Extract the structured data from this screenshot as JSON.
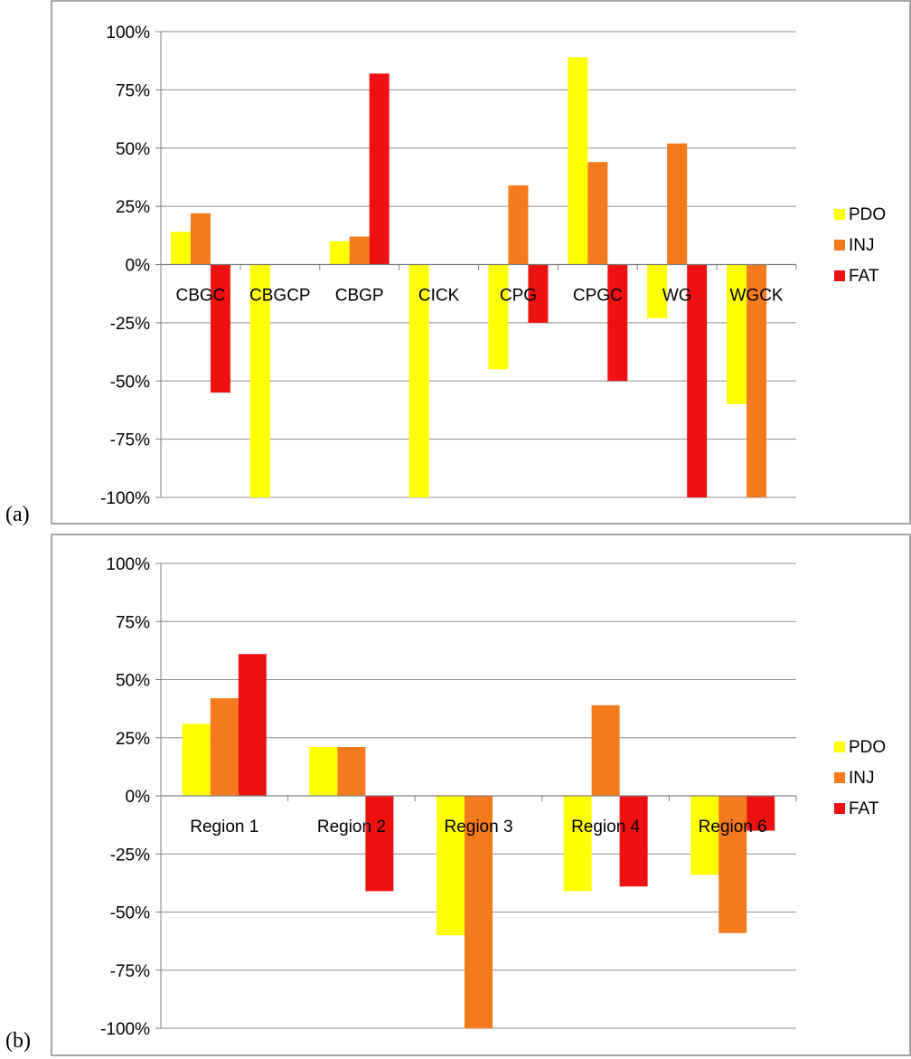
{
  "panels": [
    {
      "label": "(a)"
    },
    {
      "label": "(b)"
    }
  ],
  "colors": {
    "PDO": "#ffff00",
    "INJ": "#f57a1e",
    "FAT": "#ee1111",
    "axis": "#7f7f7f",
    "grid": "#8c8c8c"
  },
  "chart_data": [
    {
      "type": "bar",
      "panel_label": "(a)",
      "categories": [
        "CBGC",
        "CBGCP",
        "CBGP",
        "CICK",
        "CPG",
        "CPGC",
        "WG",
        "WGCK"
      ],
      "series": [
        {
          "name": "PDO",
          "values": [
            14,
            -100,
            10,
            -100,
            -45,
            89,
            -23,
            -60
          ]
        },
        {
          "name": "INJ",
          "values": [
            22,
            0,
            12,
            0,
            34,
            44,
            52,
            -100
          ]
        },
        {
          "name": "FAT",
          "values": [
            -55,
            0,
            82,
            0,
            -25,
            -50,
            -100,
            0
          ]
        }
      ],
      "ylim": [
        -100,
        100
      ],
      "yticks": [
        "100%",
        "75%",
        "50%",
        "25%",
        "0%",
        "-25%",
        "-50%",
        "-75%",
        "-100%"
      ],
      "grid": true,
      "legend": "right"
    },
    {
      "type": "bar",
      "panel_label": "(b)",
      "categories": [
        "Region 1",
        "Region 2",
        "Region 3",
        "Region 4",
        "Region 6"
      ],
      "series": [
        {
          "name": "PDO",
          "values": [
            31,
            21,
            -60,
            -41,
            -34
          ]
        },
        {
          "name": "INJ",
          "values": [
            42,
            21,
            -100,
            39,
            -59
          ]
        },
        {
          "name": "FAT",
          "values": [
            61,
            -41,
            0,
            -39,
            -15
          ]
        }
      ],
      "ylim": [
        -100,
        100
      ],
      "yticks": [
        "100%",
        "75%",
        "50%",
        "25%",
        "0%",
        "-25%",
        "-50%",
        "-75%",
        "-100%"
      ],
      "grid": true,
      "legend": "right"
    }
  ]
}
